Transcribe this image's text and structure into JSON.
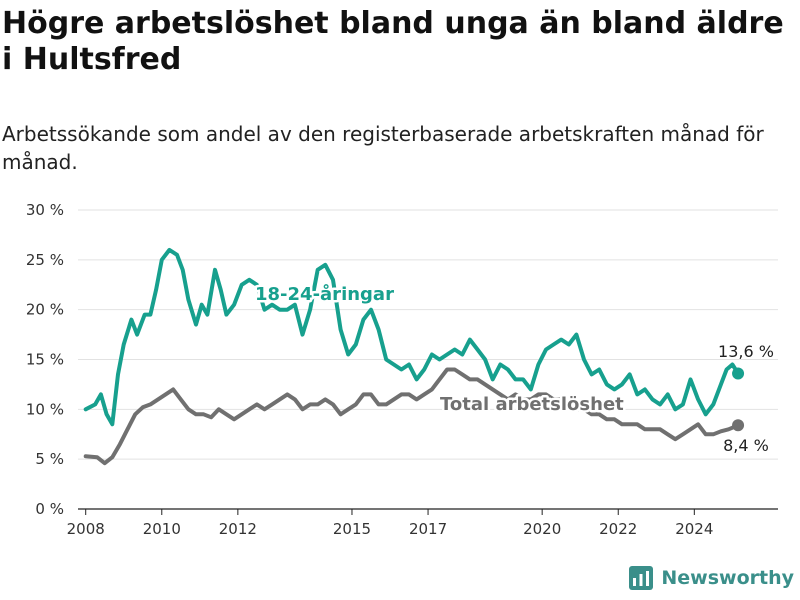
{
  "title": "Högre arbetslöshet bland unga än bland äldre i Hultsfred",
  "subtitle": "Arbetssökande som andel av den registerbaserade arbetskraften månad för månad.",
  "brand": {
    "name": "Newsworthy",
    "icon": "bar-chart-icon",
    "color": "#3a8f8a"
  },
  "chart_data": {
    "type": "line",
    "title": "Högre arbetslöshet bland unga än bland äldre i Hultsfred",
    "subtitle": "Arbetssökande som andel av den registerbaserade arbetskraften månad för månad.",
    "ylim": [
      0,
      30
    ],
    "yticks": [
      0,
      5,
      10,
      15,
      20,
      25,
      30
    ],
    "ytick_labels": [
      "0 %",
      "5 %",
      "10 %",
      "15 %",
      "20 %",
      "25 %",
      "30 %"
    ],
    "xlim": [
      2007.5,
      2026.7
    ],
    "xticks": [
      2008,
      2010,
      2012,
      2015,
      2017,
      2020,
      2022,
      2024
    ],
    "xtick_labels": [
      "2008",
      "2010",
      "2012",
      "2015",
      "2017",
      "2020",
      "2022",
      "2024"
    ],
    "grid": true,
    "series": [
      {
        "name": "18-24-åringar",
        "color": "#17a08e",
        "end_label": "13,6 %",
        "points": [
          [
            2008.0,
            10.0
          ],
          [
            2008.25,
            10.5
          ],
          [
            2008.4,
            11.5
          ],
          [
            2008.55,
            9.5
          ],
          [
            2008.7,
            8.5
          ],
          [
            2008.85,
            13.5
          ],
          [
            2009.0,
            16.5
          ],
          [
            2009.2,
            19.0
          ],
          [
            2009.35,
            17.5
          ],
          [
            2009.55,
            19.5
          ],
          [
            2009.7,
            19.5
          ],
          [
            2009.85,
            22.0
          ],
          [
            2010.0,
            25.0
          ],
          [
            2010.2,
            26.0
          ],
          [
            2010.4,
            25.5
          ],
          [
            2010.55,
            24.0
          ],
          [
            2010.7,
            21.0
          ],
          [
            2010.9,
            18.5
          ],
          [
            2011.05,
            20.5
          ],
          [
            2011.2,
            19.5
          ],
          [
            2011.4,
            24.0
          ],
          [
            2011.55,
            22.0
          ],
          [
            2011.7,
            19.5
          ],
          [
            2011.9,
            20.5
          ],
          [
            2012.1,
            22.5
          ],
          [
            2012.3,
            23.0
          ],
          [
            2012.5,
            22.5
          ],
          [
            2012.7,
            20.0
          ],
          [
            2012.9,
            20.5
          ],
          [
            2013.1,
            20.0
          ],
          [
            2013.3,
            20.0
          ],
          [
            2013.5,
            20.5
          ],
          [
            2013.7,
            17.5
          ],
          [
            2013.9,
            20.0
          ],
          [
            2014.1,
            24.0
          ],
          [
            2014.3,
            24.5
          ],
          [
            2014.5,
            23.0
          ],
          [
            2014.7,
            18.0
          ],
          [
            2014.9,
            15.5
          ],
          [
            2015.1,
            16.5
          ],
          [
            2015.3,
            19.0
          ],
          [
            2015.5,
            20.0
          ],
          [
            2015.7,
            18.0
          ],
          [
            2015.9,
            15.0
          ],
          [
            2016.1,
            14.5
          ],
          [
            2016.3,
            14.0
          ],
          [
            2016.5,
            14.5
          ],
          [
            2016.7,
            13.0
          ],
          [
            2016.9,
            14.0
          ],
          [
            2017.1,
            15.5
          ],
          [
            2017.3,
            15.0
          ],
          [
            2017.5,
            15.5
          ],
          [
            2017.7,
            16.0
          ],
          [
            2017.9,
            15.5
          ],
          [
            2018.1,
            17.0
          ],
          [
            2018.3,
            16.0
          ],
          [
            2018.5,
            15.0
          ],
          [
            2018.7,
            13.0
          ],
          [
            2018.9,
            14.5
          ],
          [
            2019.1,
            14.0
          ],
          [
            2019.3,
            13.0
          ],
          [
            2019.5,
            13.0
          ],
          [
            2019.7,
            12.0
          ],
          [
            2019.9,
            14.5
          ],
          [
            2020.1,
            16.0
          ],
          [
            2020.3,
            16.5
          ],
          [
            2020.5,
            17.0
          ],
          [
            2020.7,
            16.5
          ],
          [
            2020.9,
            17.5
          ],
          [
            2021.1,
            15.0
          ],
          [
            2021.3,
            13.5
          ],
          [
            2021.5,
            14.0
          ],
          [
            2021.7,
            12.5
          ],
          [
            2021.9,
            12.0
          ],
          [
            2022.1,
            12.5
          ],
          [
            2022.3,
            13.5
          ],
          [
            2022.5,
            11.5
          ],
          [
            2022.7,
            12.0
          ],
          [
            2022.9,
            11.0
          ],
          [
            2023.1,
            10.5
          ],
          [
            2023.3,
            11.5
          ],
          [
            2023.5,
            10.0
          ],
          [
            2023.7,
            10.5
          ],
          [
            2023.9,
            13.0
          ],
          [
            2024.1,
            11.0
          ],
          [
            2024.3,
            9.5
          ],
          [
            2024.5,
            10.5
          ],
          [
            2024.7,
            12.5
          ],
          [
            2024.85,
            14.0
          ],
          [
            2025.0,
            14.5
          ],
          [
            2025.15,
            13.6
          ]
        ]
      },
      {
        "name": "Total arbetslöshet",
        "color": "#707070",
        "end_label": "8,4 %",
        "points": [
          [
            2008.0,
            5.3
          ],
          [
            2008.3,
            5.2
          ],
          [
            2008.5,
            4.6
          ],
          [
            2008.7,
            5.2
          ],
          [
            2008.9,
            6.5
          ],
          [
            2009.1,
            8.0
          ],
          [
            2009.3,
            9.5
          ],
          [
            2009.5,
            10.2
          ],
          [
            2009.7,
            10.5
          ],
          [
            2009.9,
            11.0
          ],
          [
            2010.1,
            11.5
          ],
          [
            2010.3,
            12.0
          ],
          [
            2010.5,
            11.0
          ],
          [
            2010.7,
            10.0
          ],
          [
            2010.9,
            9.5
          ],
          [
            2011.1,
            9.5
          ],
          [
            2011.3,
            9.2
          ],
          [
            2011.5,
            10.0
          ],
          [
            2011.7,
            9.5
          ],
          [
            2011.9,
            9.0
          ],
          [
            2012.1,
            9.5
          ],
          [
            2012.3,
            10.0
          ],
          [
            2012.5,
            10.5
          ],
          [
            2012.7,
            10.0
          ],
          [
            2012.9,
            10.5
          ],
          [
            2013.1,
            11.0
          ],
          [
            2013.3,
            11.5
          ],
          [
            2013.5,
            11.0
          ],
          [
            2013.7,
            10.0
          ],
          [
            2013.9,
            10.5
          ],
          [
            2014.1,
            10.5
          ],
          [
            2014.3,
            11.0
          ],
          [
            2014.5,
            10.5
          ],
          [
            2014.7,
            9.5
          ],
          [
            2014.9,
            10.0
          ],
          [
            2015.1,
            10.5
          ],
          [
            2015.3,
            11.5
          ],
          [
            2015.5,
            11.5
          ],
          [
            2015.7,
            10.5
          ],
          [
            2015.9,
            10.5
          ],
          [
            2016.1,
            11.0
          ],
          [
            2016.3,
            11.5
          ],
          [
            2016.5,
            11.5
          ],
          [
            2016.7,
            11.0
          ],
          [
            2016.9,
            11.5
          ],
          [
            2017.1,
            12.0
          ],
          [
            2017.3,
            13.0
          ],
          [
            2017.5,
            14.0
          ],
          [
            2017.7,
            14.0
          ],
          [
            2017.9,
            13.5
          ],
          [
            2018.1,
            13.0
          ],
          [
            2018.3,
            13.0
          ],
          [
            2018.5,
            12.5
          ],
          [
            2018.7,
            12.0
          ],
          [
            2018.9,
            11.5
          ],
          [
            2019.1,
            11.0
          ],
          [
            2019.3,
            11.5
          ],
          [
            2019.5,
            11.0
          ],
          [
            2019.7,
            11.0
          ],
          [
            2019.9,
            11.5
          ],
          [
            2020.1,
            11.5
          ],
          [
            2020.3,
            11.0
          ],
          [
            2020.5,
            11.0
          ],
          [
            2020.7,
            10.5
          ],
          [
            2020.9,
            10.0
          ],
          [
            2021.1,
            10.0
          ],
          [
            2021.3,
            9.5
          ],
          [
            2021.5,
            9.5
          ],
          [
            2021.7,
            9.0
          ],
          [
            2021.9,
            9.0
          ],
          [
            2022.1,
            8.5
          ],
          [
            2022.3,
            8.5
          ],
          [
            2022.5,
            8.5
          ],
          [
            2022.7,
            8.0
          ],
          [
            2022.9,
            8.0
          ],
          [
            2023.1,
            8.0
          ],
          [
            2023.3,
            7.5
          ],
          [
            2023.5,
            7.0
          ],
          [
            2023.7,
            7.5
          ],
          [
            2023.9,
            8.0
          ],
          [
            2024.1,
            8.5
          ],
          [
            2024.3,
            7.5
          ],
          [
            2024.5,
            7.5
          ],
          [
            2024.7,
            7.8
          ],
          [
            2024.9,
            8.0
          ],
          [
            2025.15,
            8.4
          ]
        ]
      }
    ]
  }
}
